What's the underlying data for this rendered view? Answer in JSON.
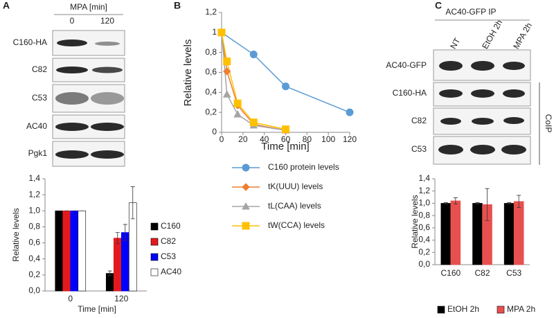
{
  "panels": [
    "A",
    "B",
    "C"
  ],
  "blots": {
    "A": {
      "header": "MPA [min]",
      "columns": [
        "0",
        "120"
      ],
      "rows": [
        "C160-HA",
        "C82",
        "C53",
        "AC40",
        "Pgk1"
      ]
    },
    "C": {
      "header": "AC40-GFP IP",
      "columns": [
        "NT",
        "EtOH 2h",
        "MPA 2h"
      ],
      "rows": [
        "AC40-GFP",
        "C160-HA",
        "C82",
        "C53"
      ],
      "bracket": "CoIP"
    }
  },
  "chart_data": [
    {
      "type": "bar",
      "ylabel": "Relative levels",
      "xlabel": "Time [min]",
      "categories": [
        "0",
        "120"
      ],
      "series": [
        {
          "name": "C160",
          "color": "#000000",
          "values": [
            1.0,
            0.22
          ],
          "errors": [
            0.0,
            0.03
          ]
        },
        {
          "name": "C82",
          "color": "#e31a1c",
          "values": [
            1.0,
            0.66
          ],
          "errors": [
            0.0,
            0.07
          ]
        },
        {
          "name": "C53",
          "color": "#0000ff",
          "values": [
            1.0,
            0.73
          ],
          "errors": [
            0.0,
            0.1
          ]
        },
        {
          "name": "AC40",
          "color": "#ffffff",
          "values": [
            1.0,
            1.1
          ],
          "errors": [
            0.0,
            0.2
          ]
        }
      ],
      "ylim": [
        0,
        1.4
      ],
      "yticks": [
        {
          "value": 0,
          "label": "0,0"
        },
        {
          "value": 0.2,
          "label": "0,2"
        },
        {
          "value": 0.4,
          "label": "0,4"
        },
        {
          "value": 0.6,
          "label": "0,6"
        },
        {
          "value": 0.8,
          "label": "0,8"
        },
        {
          "value": 1.0,
          "label": "1,0"
        },
        {
          "value": 1.2,
          "label": "1,2"
        },
        {
          "value": 1.4,
          "label": "1,4"
        }
      ],
      "legend": "right"
    },
    {
      "type": "line",
      "ylabel": "Relative levels",
      "xlabel": "Time [min]",
      "series": [
        {
          "name": "C160 protein levels",
          "color": "#5b9bd5",
          "marker": "circle",
          "x": [
            0,
            30,
            60,
            120
          ],
          "values": [
            1,
            0.78,
            0.46,
            0.2
          ]
        },
        {
          "name": "tK(UUU) levels",
          "color": "#ed7d31",
          "marker": "diamond",
          "x": [
            0,
            5,
            15,
            30,
            60
          ],
          "values": [
            1,
            0.61,
            0.27,
            0.08,
            0.02
          ]
        },
        {
          "name": "tL(CAA) levels",
          "color": "#a5a5a5",
          "marker": "triangle",
          "x": [
            0,
            5,
            15,
            30,
            60
          ],
          "values": [
            1,
            0.38,
            0.18,
            0.07,
            0.02
          ]
        },
        {
          "name": "tW(CCA) levels",
          "color": "#ffc000",
          "marker": "square",
          "x": [
            0,
            5,
            15,
            30,
            60
          ],
          "values": [
            1,
            0.71,
            0.29,
            0.1,
            0.03
          ]
        }
      ],
      "xlim": [
        0,
        120
      ],
      "xticks": [
        0,
        20,
        40,
        60,
        80,
        100,
        120
      ],
      "ylim": [
        0,
        1.2
      ],
      "yticks": [
        0,
        {
          "value": 0.2,
          "label": "0,2"
        },
        {
          "value": 0.4,
          "label": "0,4"
        },
        {
          "value": 0.6,
          "label": "0,6"
        },
        {
          "value": 0.8,
          "label": "0,8"
        },
        1,
        {
          "value": 1.2,
          "label": "1,2"
        }
      ],
      "legend": "bottom"
    },
    {
      "type": "bar",
      "ylabel": "Relative levels",
      "categories": [
        "C160",
        "C82",
        "C53"
      ],
      "series": [
        {
          "name": "EtOH 2h",
          "color": "#000000",
          "values": [
            1.0,
            1.0,
            1.0
          ],
          "errors": [
            0.01,
            0.01,
            0.01
          ]
        },
        {
          "name": "MPA 2h",
          "color": "#e8504f",
          "values": [
            1.04,
            0.98,
            1.03
          ],
          "errors": [
            0.05,
            0.26,
            0.1
          ]
        }
      ],
      "ylim": [
        0,
        1.4
      ],
      "yticks": [
        {
          "value": 0,
          "label": "0,0"
        },
        {
          "value": 0.2,
          "label": "0,2"
        },
        {
          "value": 0.4,
          "label": "0,4"
        },
        {
          "value": 0.6,
          "label": "0,6"
        },
        {
          "value": 0.8,
          "label": "0,8"
        },
        {
          "value": 1.0,
          "label": "1,0"
        },
        {
          "value": 1.2,
          "label": "1,2"
        },
        {
          "value": 1.4,
          "label": "1,4"
        }
      ],
      "legend": "bottom"
    }
  ]
}
